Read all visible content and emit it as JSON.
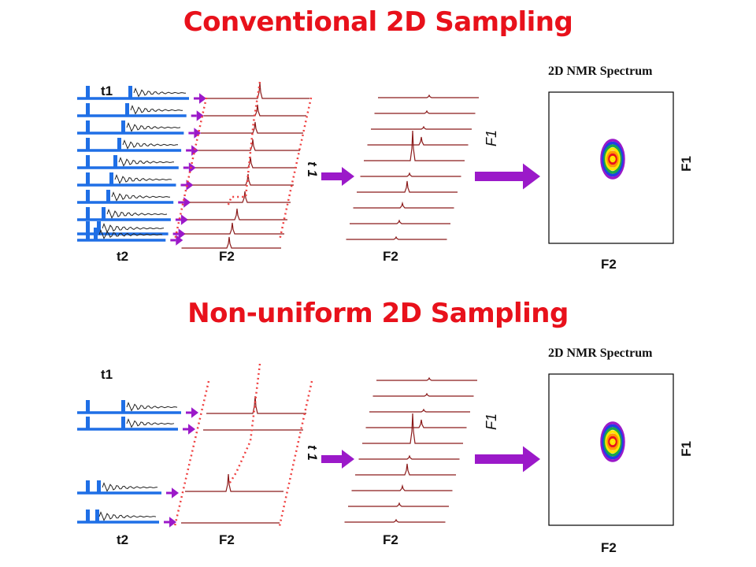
{
  "top": {
    "title": "Conventional 2D Sampling",
    "labels": {
      "t1": "t1",
      "t2": "t2",
      "f2_stack": "F2",
      "t1_axis": "t 1",
      "f2_transformed": "F2",
      "f1_axis": "F1",
      "spectrum_title": "2D NMR Spectrum",
      "spectrum_f1": "F1",
      "spectrum_f2": "F2"
    },
    "fid_rows": 10
  },
  "bottom": {
    "title": "Non-uniform 2D Sampling",
    "labels": {
      "t1": "t1",
      "t2": "t2",
      "f2_stack": "F2",
      "t1_axis": "t 1",
      "f2_transformed": "F2",
      "f1_axis": "F1",
      "spectrum_title": "2D NMR Spectrum",
      "spectrum_f1": "F1",
      "spectrum_f2": "F2"
    },
    "fid_rows": 4
  },
  "colors": {
    "title": "#e8111b",
    "pulse": "#1f6fe6",
    "arrow": "#9b19c9",
    "trace": "#8b1a1a",
    "envelope": "#ef4040"
  }
}
